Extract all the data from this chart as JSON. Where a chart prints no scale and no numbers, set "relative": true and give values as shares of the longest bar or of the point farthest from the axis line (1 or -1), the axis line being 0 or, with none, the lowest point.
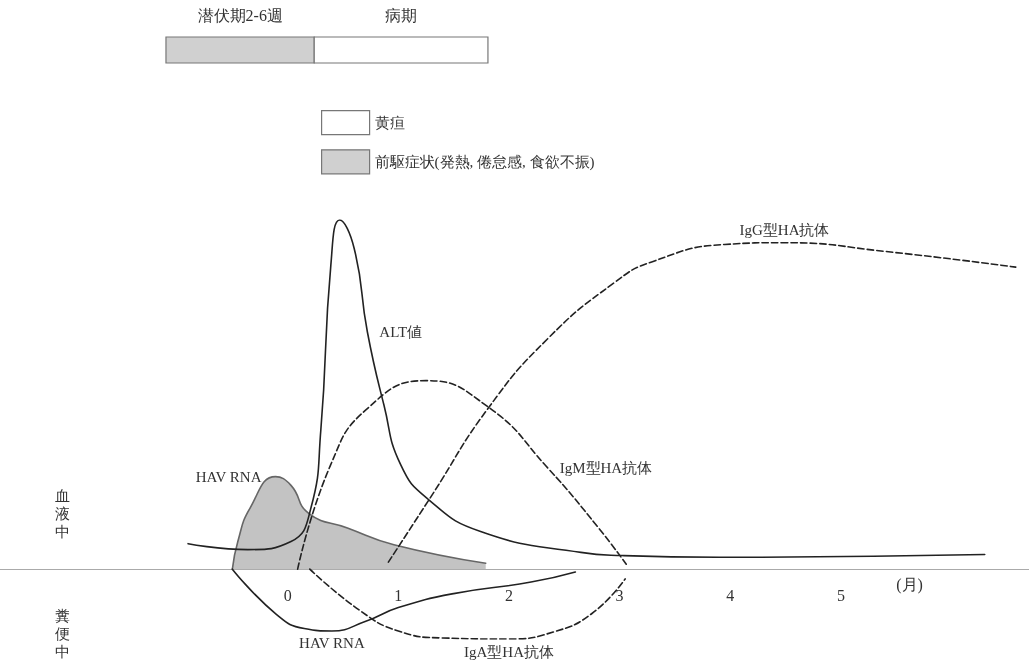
{
  "chart_data": [
    {
      "type": "bar",
      "orientation": "horizontal",
      "categories": [
        null
      ],
      "xticks": [
        0,
        1,
        2,
        3,
        4,
        5
      ],
      "tick_labels": false,
      "legend": "bottom",
      "annotations": [
        "潜伏期2-6週",
        "病期"
      ],
      "series": [
        {
          "name": "前駆症状(発熱, 倦怠感, 食欲不振)",
          "color": "#d0d0d0",
          "base": [
            -1.1
          ],
          "values": [
            1.34
          ]
        },
        {
          "name": "黄疸",
          "color": "#ffffff",
          "base": [
            0.24
          ],
          "values": [
            1.57
          ]
        }
      ]
    },
    {
      "type": "line",
      "relative": true,
      "xlabel": "(月)",
      "xlim": [
        -2.6,
        6.7
      ],
      "xticks": [
        0,
        1,
        2,
        3,
        4,
        5
      ],
      "grid": false,
      "marker": "none",
      "annotations": [
        "血液中",
        "糞便中"
      ],
      "series": [
        {
          "name": "HAV RNA",
          "type": "area",
          "color": "#b4b4b4",
          "line_style": "solid",
          "x": [
            -0.5,
            -0.45,
            -0.34,
            -0.11,
            0.03,
            0.19,
            0.54,
            0.96,
            1.79
          ],
          "values": [
            0,
            0.08,
            0.175,
            0.265,
            0.24,
            0.16,
            0.118,
            0.07,
            0.017
          ]
        },
        {
          "name": "ALT値",
          "color": "#222222",
          "line_style": "solid",
          "x": [
            -0.9,
            -0.36,
            0.03,
            0.21,
            0.3,
            0.39,
            0.47,
            0.6,
            0.72,
            0.87,
            1.02,
            1.27,
            1.75,
            2.65,
            3.02,
            3.9,
            6.3
          ],
          "values": [
            0.073,
            0.056,
            0.079,
            0.175,
            0.4,
            0.87,
            1,
            0.92,
            0.68,
            0.47,
            0.3,
            0.2,
            0.107,
            0.048,
            0.039,
            0.034,
            0.042
          ]
        },
        {
          "name": "IgM型HA抗体",
          "color": "#222222",
          "line_style": "dashed",
          "x": [
            0.09,
            0.39,
            0.72,
            1.25,
            1.81,
            2.35,
            2.81,
            3.06
          ],
          "values": [
            0,
            0.3,
            0.46,
            0.54,
            0.465,
            0.29,
            0.118,
            0.014
          ]
        },
        {
          "name": "IgG型HA抗体",
          "color": "#222222",
          "line_style": "dashed",
          "x": [
            0.91,
            1.3,
            1.81,
            2.35,
            2.95,
            3.29,
            3.95,
            4.49,
            5.4,
            6.58
          ],
          "values": [
            0.02,
            0.21,
            0.46,
            0.66,
            0.82,
            0.88,
            0.93,
            0.935,
            0.91,
            0.865
          ]
        },
        {
          "name": "HAV RNA",
          "color": "#222222",
          "line_style": "solid",
          "x": [
            -0.5,
            -0.1,
            0.15,
            0.4,
            0.7,
            1.0,
            1.5,
            2.2,
            2.6
          ],
          "values": [
            0,
            -0.13,
            -0.17,
            -0.177,
            -0.15,
            -0.11,
            -0.07,
            -0.037,
            -0.008
          ]
        },
        {
          "name": "IgA型HA抗体",
          "color": "#222222",
          "line_style": "dashed",
          "x": [
            0.2,
            0.66,
            1.0,
            1.4,
            2.0,
            2.4,
            2.75,
            3.05
          ],
          "values": [
            0,
            -0.12,
            -0.177,
            -0.197,
            -0.2,
            -0.18,
            -0.127,
            -0.028
          ]
        }
      ]
    }
  ]
}
